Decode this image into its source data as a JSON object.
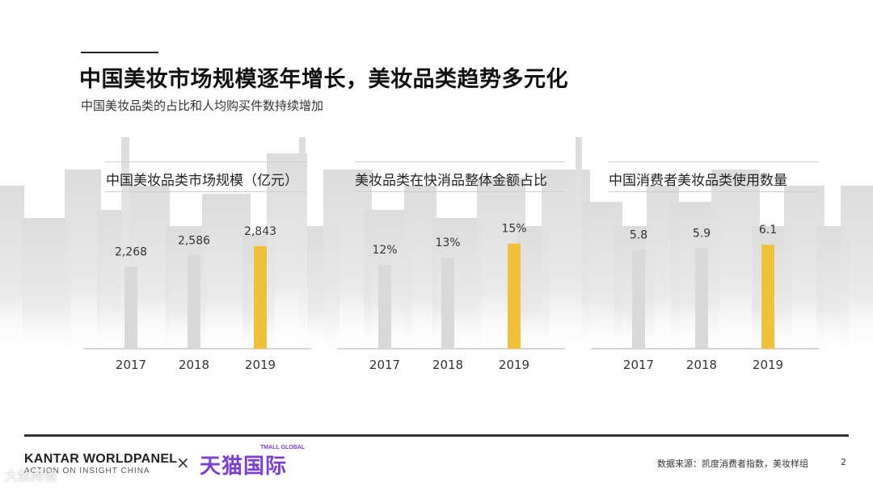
{
  "header": {
    "title": "中国美妆市场规模逐年增长，美妆品类趋势多元化",
    "subtitle": "中国美妆品类的占比和人均购买件数持续增加"
  },
  "colors": {
    "bar_default": "#d9d9d9",
    "bar_highlight": "#f0c23b",
    "axis": "#bfbfbf",
    "skyline": "#e2e2e2"
  },
  "chart_data": [
    {
      "type": "bar",
      "title": "中国美妆品类市场规模（亿元）",
      "categories": [
        "2017",
        "2018",
        "2019"
      ],
      "values": [
        2268,
        2586,
        2843
      ],
      "labels": [
        "2,268",
        "2,586",
        "2,843"
      ],
      "ylim": [
        0,
        3400
      ],
      "highlight_index": 2,
      "xlabel": "",
      "ylabel": ""
    },
    {
      "type": "bar",
      "title": "美妆品类在快消品整体金额占比",
      "categories": [
        "2017",
        "2018",
        "2019"
      ],
      "values": [
        12,
        13,
        15
      ],
      "labels": [
        "12%",
        "13%",
        "15%"
      ],
      "ylim": [
        0,
        17.5
      ],
      "highlight_index": 2,
      "xlabel": "",
      "ylabel": ""
    },
    {
      "type": "bar",
      "title": "中国消费者美妆品类使用数量",
      "categories": [
        "2017",
        "2018",
        "2019"
      ],
      "values": [
        5.8,
        5.9,
        6.1
      ],
      "labels": [
        "5.8",
        "5.9",
        "6.1"
      ],
      "ylim": [
        0,
        7.2
      ],
      "highlight_index": 2,
      "xlabel": "",
      "ylabel": ""
    }
  ],
  "footer": {
    "brand_kantar": "KANTAR WORLDPANEL",
    "brand_kantar_sub": "ACTION ON INSIGHT CHINA",
    "times": "×",
    "brand_tmall": "天猫国际",
    "brand_tmall_global": "TMALL GLOBAL",
    "source": "数据来源：凯度消费者指数，美妆样组",
    "page_number": "2"
  },
  "watermark": "大数跨境"
}
